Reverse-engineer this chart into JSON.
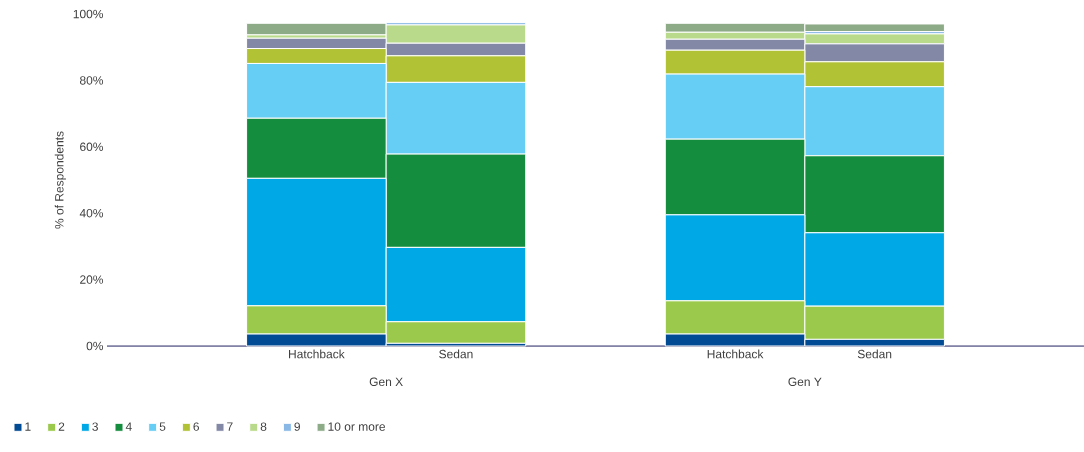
{
  "chart_data": {
    "type": "bar",
    "stacked": true,
    "ylabel": "% of Respondents",
    "categories": [
      "Hatchback",
      "Sedan",
      "Hatchback",
      "Sedan"
    ],
    "annotations": [
      "Gen X",
      "Gen Y"
    ],
    "series": [
      {
        "name": "1",
        "color": "#004b93",
        "values": [
          3.6,
          0.8,
          3.6,
          2.0
        ]
      },
      {
        "name": "2",
        "color": "#9bc94b",
        "values": [
          8.5,
          6.5,
          10,
          10
        ]
      },
      {
        "name": "3",
        "color": "#00a9e6",
        "values": [
          38.4,
          22.4,
          25.9,
          22.1
        ]
      },
      {
        "name": "4",
        "color": "#148e3e",
        "values": [
          18.1,
          28.1,
          22.8,
          23.2
        ]
      },
      {
        "name": "5",
        "color": "#66cdf4",
        "values": [
          16.5,
          21.6,
          19.6,
          20.8
        ]
      },
      {
        "name": "6",
        "color": "#b2c235",
        "values": [
          4.5,
          8,
          7.2,
          7.5
        ]
      },
      {
        "name": "7",
        "color": "#8388a6",
        "values": [
          3.1,
          3.8,
          3.3,
          5.4
        ]
      },
      {
        "name": "8",
        "color": "#b8da8a",
        "values": [
          1,
          5.5,
          2.1,
          3
        ]
      },
      {
        "name": "9",
        "color": "#8ab8e6",
        "values": [
          0,
          0.7,
          0,
          0.7
        ]
      },
      {
        "name": "10 or more",
        "color": "#8dab87",
        "values": [
          3.5,
          0,
          2.7,
          2.3
        ]
      }
    ],
    "ylim": [
      0,
      100
    ],
    "yticks": [
      {
        "value": 0,
        "label": "0%"
      },
      {
        "value": 20,
        "label": "20%"
      },
      {
        "value": 40,
        "label": "40%"
      },
      {
        "value": 60,
        "label": "60%"
      },
      {
        "value": 80,
        "label": "80%"
      },
      {
        "value": 100,
        "label": "100%"
      }
    ],
    "legend": "bottom",
    "grid": false
  }
}
